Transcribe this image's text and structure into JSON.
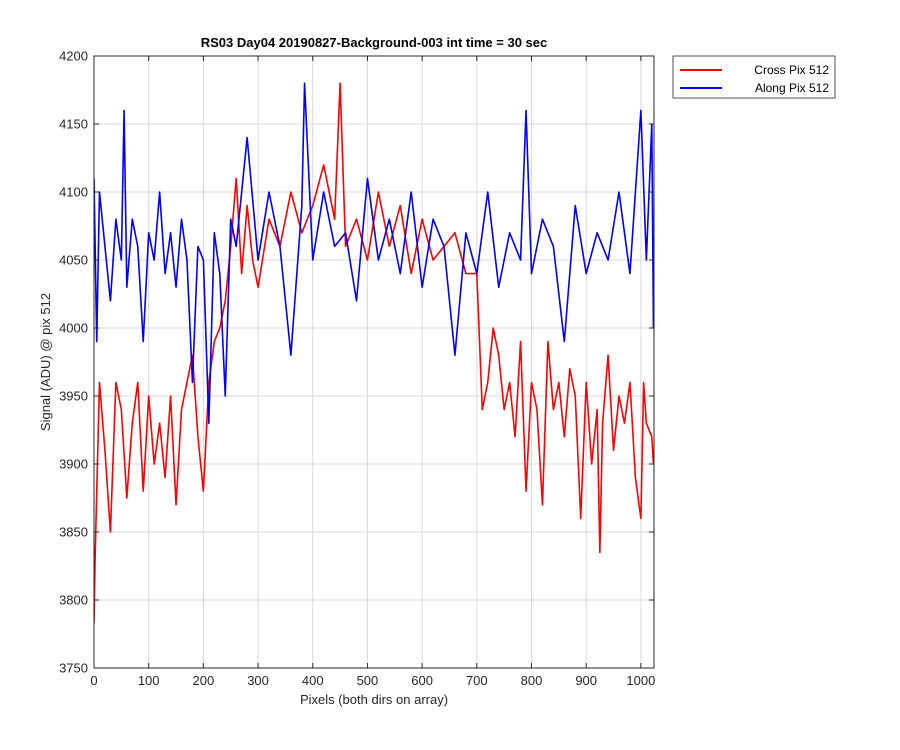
{
  "chart_data": {
    "type": "line",
    "title": "RS03 Day04 20190827-Background-003 int time = 30 sec",
    "xlabel": "Pixels (both dirs on array)",
    "ylabel": "Signal (ADU) @ pix 512",
    "xlim": [
      0,
      1024
    ],
    "ylim": [
      3750,
      4200
    ],
    "xticks": [
      0,
      100,
      200,
      300,
      400,
      500,
      600,
      700,
      800,
      900,
      1000
    ],
    "yticks": [
      3750,
      3800,
      3850,
      3900,
      3950,
      4000,
      4050,
      4100,
      4150,
      4200
    ],
    "grid": true,
    "legend_position": "outside-top-right",
    "series": [
      {
        "name": "Cross Pix 512",
        "color": "#ff0000",
        "x": [
          0,
          2,
          5,
          10,
          20,
          30,
          40,
          50,
          60,
          70,
          80,
          90,
          100,
          110,
          120,
          130,
          140,
          150,
          160,
          170,
          180,
          190,
          200,
          210,
          220,
          230,
          240,
          250,
          260,
          270,
          280,
          290,
          300,
          320,
          340,
          360,
          380,
          400,
          420,
          440,
          450,
          460,
          480,
          500,
          520,
          540,
          560,
          580,
          600,
          620,
          640,
          660,
          680,
          700,
          710,
          720,
          730,
          740,
          750,
          760,
          770,
          780,
          790,
          800,
          810,
          820,
          830,
          840,
          850,
          860,
          870,
          880,
          890,
          900,
          910,
          920,
          925,
          930,
          940,
          950,
          960,
          970,
          980,
          990,
          1000,
          1005,
          1010,
          1020,
          1023
        ],
        "y": [
          3783,
          3830,
          3880,
          3960,
          3910,
          3850,
          3960,
          3940,
          3875,
          3930,
          3960,
          3880,
          3950,
          3900,
          3930,
          3890,
          3950,
          3870,
          3940,
          3960,
          3980,
          3920,
          3880,
          3960,
          3990,
          4000,
          4020,
          4060,
          4110,
          4040,
          4090,
          4050,
          4030,
          4080,
          4060,
          4100,
          4070,
          4090,
          4120,
          4080,
          4180,
          4060,
          4080,
          4050,
          4100,
          4060,
          4090,
          4040,
          4080,
          4050,
          4060,
          4070,
          4040,
          4040,
          3940,
          3960,
          4000,
          3980,
          3940,
          3960,
          3920,
          3990,
          3880,
          3960,
          3940,
          3870,
          3990,
          3940,
          3960,
          3920,
          3970,
          3950,
          3860,
          3960,
          3900,
          3940,
          3835,
          3930,
          3980,
          3910,
          3950,
          3930,
          3960,
          3890,
          3860,
          3960,
          3930,
          3920,
          3900
        ]
      },
      {
        "name": "Along Pix 512",
        "color": "#0000ff",
        "x": [
          0,
          5,
          10,
          20,
          30,
          40,
          50,
          55,
          60,
          70,
          80,
          90,
          100,
          110,
          120,
          130,
          140,
          150,
          160,
          170,
          180,
          190,
          200,
          210,
          220,
          230,
          240,
          250,
          260,
          280,
          300,
          320,
          340,
          360,
          380,
          385,
          400,
          420,
          440,
          460,
          480,
          500,
          520,
          540,
          560,
          580,
          600,
          620,
          640,
          660,
          680,
          700,
          720,
          740,
          760,
          780,
          790,
          800,
          820,
          840,
          860,
          880,
          900,
          920,
          940,
          960,
          980,
          1000,
          1010,
          1020,
          1023
        ],
        "y": [
          4110,
          3990,
          4100,
          4060,
          4020,
          4080,
          4050,
          4160,
          4030,
          4080,
          4060,
          3990,
          4070,
          4050,
          4100,
          4040,
          4070,
          4030,
          4080,
          4050,
          3960,
          4060,
          4050,
          3930,
          4070,
          4040,
          3950,
          4080,
          4060,
          4140,
          4050,
          4100,
          4060,
          3980,
          4090,
          4180,
          4050,
          4100,
          4060,
          4070,
          4020,
          4110,
          4050,
          4080,
          4040,
          4100,
          4030,
          4080,
          4060,
          3980,
          4070,
          4040,
          4100,
          4030,
          4070,
          4050,
          4160,
          4040,
          4080,
          4060,
          3990,
          4090,
          4040,
          4070,
          4050,
          4100,
          4040,
          4160,
          4050,
          4150,
          4000
        ]
      }
    ]
  }
}
